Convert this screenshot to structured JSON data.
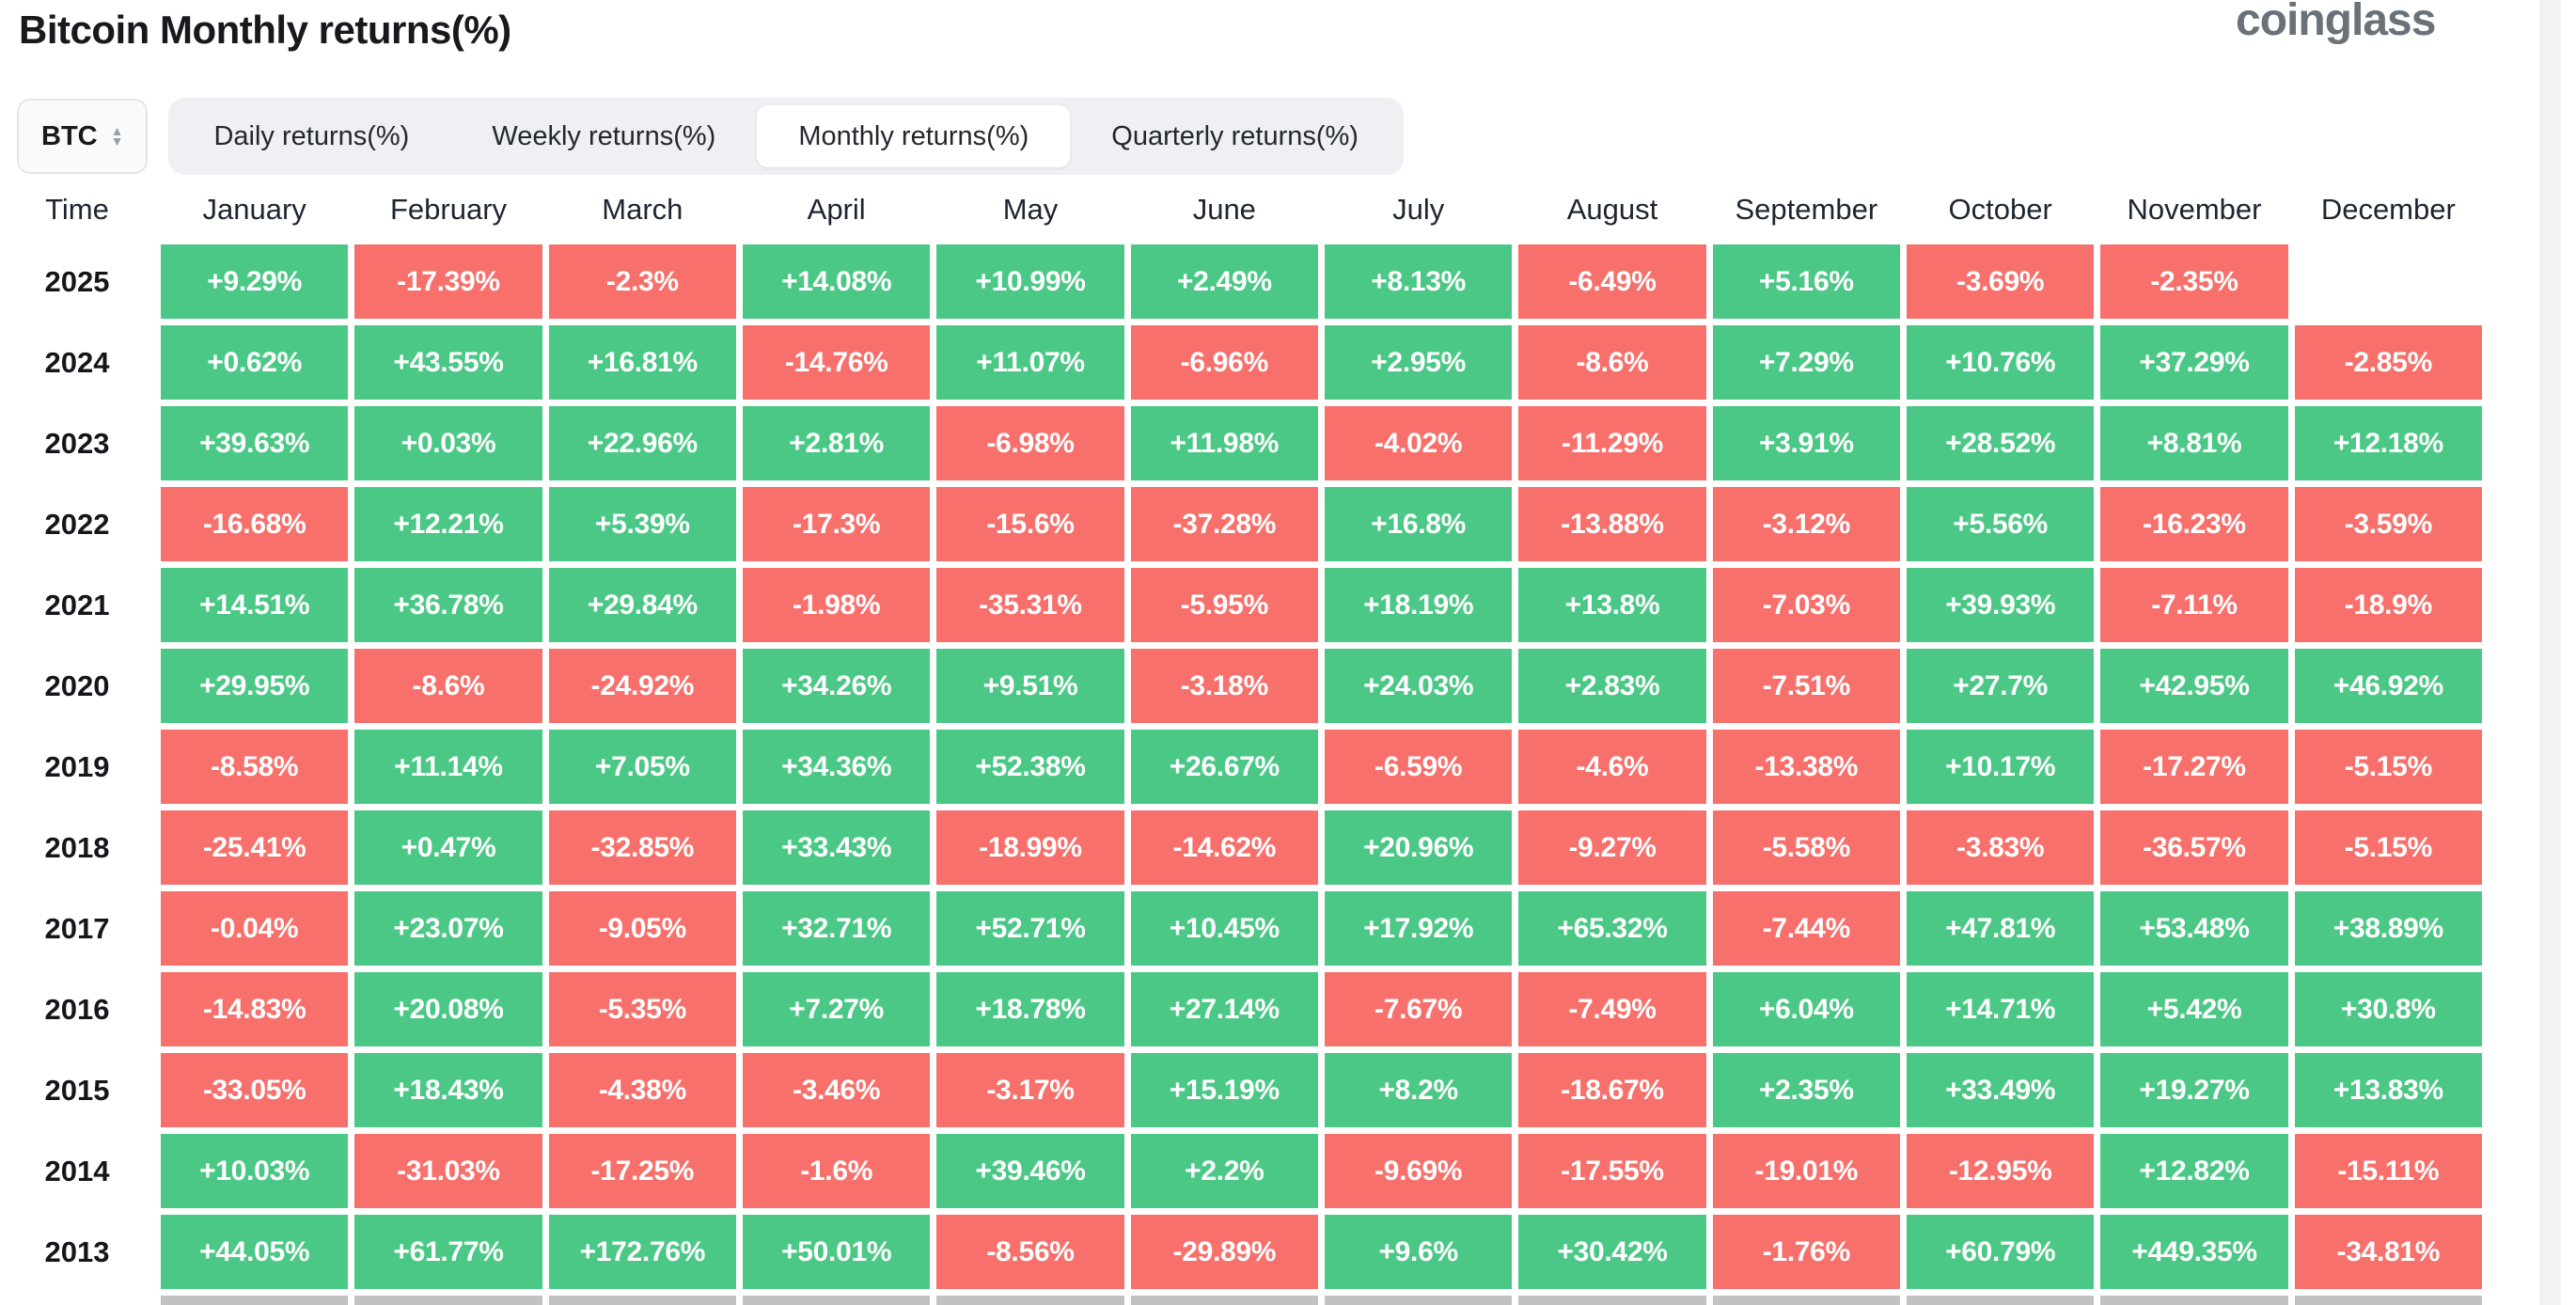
{
  "header": {
    "title": "Bitcoin Monthly returns(%)",
    "logo": "coinglass"
  },
  "controls": {
    "symbol_selector": {
      "value": "BTC"
    },
    "tabs": [
      {
        "label": "Daily returns(%)",
        "active": false
      },
      {
        "label": "Weekly returns(%)",
        "active": false
      },
      {
        "label": "Monthly returns(%)",
        "active": true
      },
      {
        "label": "Quarterly returns(%)",
        "active": false
      }
    ]
  },
  "colors": {
    "positive": "#4bc886",
    "negative": "#f7706c",
    "neutral": "#c2c2c2"
  },
  "chart_data": {
    "type": "heatmap",
    "title": "Bitcoin Monthly returns(%)",
    "unit": "%",
    "columns": [
      "Time",
      "January",
      "February",
      "March",
      "April",
      "May",
      "June",
      "July",
      "August",
      "September",
      "October",
      "November",
      "December"
    ],
    "rows": [
      {
        "year": "2025",
        "values": [
          "+9.29%",
          "-17.39%",
          "-2.3%",
          "+14.08%",
          "+10.99%",
          "+2.49%",
          "+8.13%",
          "-6.49%",
          "+5.16%",
          "-3.69%",
          "-2.35%",
          null
        ]
      },
      {
        "year": "2024",
        "values": [
          "+0.62%",
          "+43.55%",
          "+16.81%",
          "-14.76%",
          "+11.07%",
          "-6.96%",
          "+2.95%",
          "-8.6%",
          "+7.29%",
          "+10.76%",
          "+37.29%",
          "-2.85%"
        ]
      },
      {
        "year": "2023",
        "values": [
          "+39.63%",
          "+0.03%",
          "+22.96%",
          "+2.81%",
          "-6.98%",
          "+11.98%",
          "-4.02%",
          "-11.29%",
          "+3.91%",
          "+28.52%",
          "+8.81%",
          "+12.18%"
        ]
      },
      {
        "year": "2022",
        "values": [
          "-16.68%",
          "+12.21%",
          "+5.39%",
          "-17.3%",
          "-15.6%",
          "-37.28%",
          "+16.8%",
          "-13.88%",
          "-3.12%",
          "+5.56%",
          "-16.23%",
          "-3.59%"
        ]
      },
      {
        "year": "2021",
        "values": [
          "+14.51%",
          "+36.78%",
          "+29.84%",
          "-1.98%",
          "-35.31%",
          "-5.95%",
          "+18.19%",
          "+13.8%",
          "-7.03%",
          "+39.93%",
          "-7.11%",
          "-18.9%"
        ]
      },
      {
        "year": "2020",
        "values": [
          "+29.95%",
          "-8.6%",
          "-24.92%",
          "+34.26%",
          "+9.51%",
          "-3.18%",
          "+24.03%",
          "+2.83%",
          "-7.51%",
          "+27.7%",
          "+42.95%",
          "+46.92%"
        ]
      },
      {
        "year": "2019",
        "values": [
          "-8.58%",
          "+11.14%",
          "+7.05%",
          "+34.36%",
          "+52.38%",
          "+26.67%",
          "-6.59%",
          "-4.6%",
          "-13.38%",
          "+10.17%",
          "-17.27%",
          "-5.15%"
        ]
      },
      {
        "year": "2018",
        "values": [
          "-25.41%",
          "+0.47%",
          "-32.85%",
          "+33.43%",
          "-18.99%",
          "-14.62%",
          "+20.96%",
          "-9.27%",
          "-5.58%",
          "-3.83%",
          "-36.57%",
          "-5.15%"
        ]
      },
      {
        "year": "2017",
        "values": [
          "-0.04%",
          "+23.07%",
          "-9.05%",
          "+32.71%",
          "+52.71%",
          "+10.45%",
          "+17.92%",
          "+65.32%",
          "-7.44%",
          "+47.81%",
          "+53.48%",
          "+38.89%"
        ]
      },
      {
        "year": "2016",
        "values": [
          "-14.83%",
          "+20.08%",
          "-5.35%",
          "+7.27%",
          "+18.78%",
          "+27.14%",
          "-7.67%",
          "-7.49%",
          "+6.04%",
          "+14.71%",
          "+5.42%",
          "+30.8%"
        ]
      },
      {
        "year": "2015",
        "values": [
          "-33.05%",
          "+18.43%",
          "-4.38%",
          "-3.46%",
          "-3.17%",
          "+15.19%",
          "+8.2%",
          "-18.67%",
          "+2.35%",
          "+33.49%",
          "+19.27%",
          "+13.83%"
        ]
      },
      {
        "year": "2014",
        "values": [
          "+10.03%",
          "-31.03%",
          "-17.25%",
          "-1.6%",
          "+39.46%",
          "+2.2%",
          "-9.69%",
          "-17.55%",
          "-19.01%",
          "-12.95%",
          "+12.82%",
          "-15.11%"
        ]
      },
      {
        "year": "2013",
        "values": [
          "+44.05%",
          "+61.77%",
          "+172.76%",
          "+50.01%",
          "-8.56%",
          "-29.89%",
          "+9.6%",
          "+30.42%",
          "-1.76%",
          "+60.79%",
          "+449.35%",
          "-34.81%"
        ]
      },
      {
        "year": "",
        "partial": true,
        "values": [
          null,
          null,
          null,
          null,
          null,
          null,
          null,
          null,
          null,
          null,
          null,
          null
        ]
      }
    ]
  }
}
